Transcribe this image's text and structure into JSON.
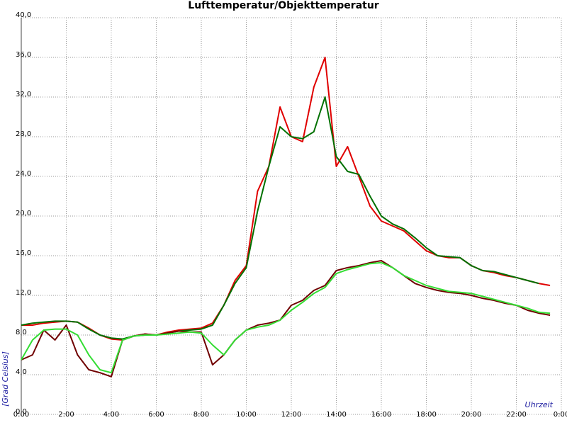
{
  "chart_data": {
    "type": "line",
    "title": "Lufttemperatur/Objekttemperatur",
    "x_label": "Uhrzeit",
    "y_label": "[Grad Celsius]",
    "xlim": [
      0,
      24
    ],
    "ylim": [
      0,
      40
    ],
    "grid": true,
    "xticks": [
      {
        "value": 0,
        "label": "0:00"
      },
      {
        "value": 2,
        "label": "2:00"
      },
      {
        "value": 4,
        "label": "4:00"
      },
      {
        "value": 6,
        "label": "6:00"
      },
      {
        "value": 8,
        "label": "8:00"
      },
      {
        "value": 10,
        "label": "10:00"
      },
      {
        "value": 12,
        "label": "12:00"
      },
      {
        "value": 14,
        "label": "14:00"
      },
      {
        "value": 16,
        "label": "16:00"
      },
      {
        "value": 18,
        "label": "18:00"
      },
      {
        "value": 20,
        "label": "20:00"
      },
      {
        "value": 22,
        "label": "22:00"
      },
      {
        "value": 24,
        "label": "0:00"
      }
    ],
    "yticks": [
      {
        "value": 0,
        "label": "0,0"
      },
      {
        "value": 4,
        "label": "4,0"
      },
      {
        "value": 8,
        "label": "8,0"
      },
      {
        "value": 12,
        "label": "12,0"
      },
      {
        "value": 16,
        "label": "16,0"
      },
      {
        "value": 20,
        "label": "20,0"
      },
      {
        "value": 24,
        "label": "24,0"
      },
      {
        "value": 28,
        "label": "28,0"
      },
      {
        "value": 32,
        "label": "32,0"
      },
      {
        "value": 36,
        "label": "36,0"
      },
      {
        "value": 40,
        "label": "40,0"
      }
    ],
    "x": [
      0,
      0.5,
      1,
      1.5,
      2,
      2.5,
      3,
      3.5,
      4,
      4.5,
      5,
      5.5,
      6,
      6.5,
      7,
      7.5,
      8,
      8.5,
      9,
      9.5,
      10,
      10.5,
      11,
      11.5,
      12,
      12.5,
      13,
      13.5,
      14,
      14.5,
      15,
      15.5,
      16,
      16.5,
      17,
      17.5,
      18,
      18.5,
      19,
      19.5,
      20,
      20.5,
      21,
      21.5,
      22,
      22.5,
      23,
      23.5
    ],
    "series": [
      {
        "color": "#e00000",
        "values": [
          9.0,
          9.0,
          9.2,
          9.3,
          9.4,
          9.3,
          8.7,
          8.0,
          7.6,
          7.5,
          7.9,
          8.1,
          8.0,
          8.3,
          8.5,
          8.6,
          8.7,
          9.2,
          11.0,
          13.5,
          15.0,
          22.5,
          25.0,
          31.0,
          28.0,
          27.5,
          33.0,
          36.0,
          25.0,
          27.0,
          24.0,
          21.0,
          19.5,
          19.0,
          18.5,
          17.5,
          16.5,
          16.0,
          15.8,
          15.8,
          15.0,
          14.5,
          14.3,
          14.0,
          13.8,
          13.5,
          13.2,
          13.0
        ]
      },
      {
        "color": "#007000",
        "values": [
          9.0,
          9.2,
          9.3,
          9.4,
          9.4,
          9.3,
          8.6,
          8.0,
          7.7,
          7.6,
          7.9,
          8.0,
          8.0,
          8.2,
          8.4,
          8.5,
          8.6,
          9.0,
          11.0,
          13.2,
          14.8,
          20.5,
          25.0,
          29.0,
          28.0,
          27.8,
          28.5,
          32.0,
          26.0,
          24.5,
          24.2,
          22.0,
          20.0,
          19.2,
          18.7,
          17.8,
          16.8,
          16.0,
          15.9,
          15.8,
          15.0,
          14.5,
          14.4,
          14.1,
          13.8,
          13.5,
          13.2,
          null
        ]
      },
      {
        "color": "#700000",
        "values": [
          5.5,
          6.0,
          8.5,
          7.5,
          9.0,
          6.0,
          4.5,
          4.2,
          3.8,
          7.5,
          7.9,
          8.1,
          8.0,
          8.2,
          8.4,
          8.3,
          8.3,
          5.0,
          6.0,
          7.5,
          8.5,
          9.0,
          9.2,
          9.5,
          11.0,
          11.5,
          12.5,
          13.0,
          14.5,
          14.8,
          15.0,
          15.3,
          15.5,
          14.8,
          14.0,
          13.2,
          12.8,
          12.5,
          12.3,
          12.2,
          12.0,
          11.7,
          11.5,
          11.2,
          11.0,
          10.5,
          10.2,
          10.0
        ]
      },
      {
        "color": "#33dd33",
        "values": [
          5.5,
          7.5,
          8.5,
          8.6,
          8.6,
          8.0,
          6.0,
          4.5,
          4.2,
          7.5,
          7.9,
          8.0,
          8.0,
          8.1,
          8.2,
          8.3,
          8.2,
          7.0,
          6.0,
          7.5,
          8.5,
          8.8,
          9.0,
          9.5,
          10.5,
          11.3,
          12.2,
          12.8,
          14.2,
          14.6,
          14.9,
          15.2,
          15.3,
          14.8,
          14.0,
          13.5,
          13.0,
          12.7,
          12.4,
          12.3,
          12.2,
          11.9,
          11.6,
          11.3,
          11.0,
          10.7,
          10.3,
          10.2
        ]
      }
    ]
  }
}
